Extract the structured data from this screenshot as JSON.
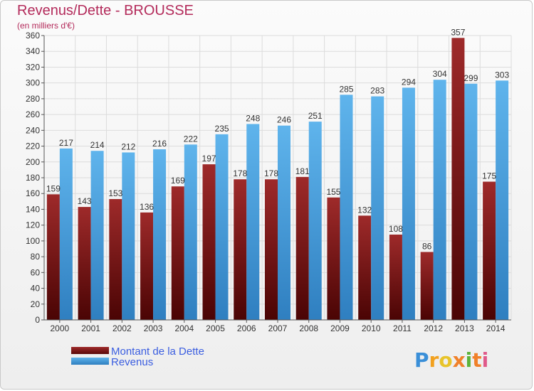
{
  "chart_data": {
    "type": "bar",
    "title": "Revenus/Dette - BROUSSE",
    "subtitle": "(en milliers d'€)",
    "categories": [
      "2000",
      "2001",
      "2002",
      "2003",
      "2004",
      "2005",
      "2006",
      "2007",
      "2008",
      "2009",
      "2010",
      "2011",
      "2012",
      "2013",
      "2014"
    ],
    "series": [
      {
        "name": "Montant de la Dette",
        "values": [
          159,
          143,
          153,
          136,
          169,
          197,
          178,
          178,
          181,
          155,
          132,
          108,
          86,
          357,
          175
        ]
      },
      {
        "name": "Revenus",
        "values": [
          217,
          214,
          212,
          216,
          222,
          235,
          248,
          246,
          251,
          285,
          283,
          294,
          304,
          299,
          303
        ]
      }
    ],
    "ylim": [
      0,
      360
    ],
    "ytick_step": 20,
    "grid": true,
    "legend_position": "bottom-left",
    "colors": {
      "dette": "#8b1a1a",
      "revenus": "#3f9fe0"
    }
  },
  "brand": {
    "text": "Proxiti"
  }
}
